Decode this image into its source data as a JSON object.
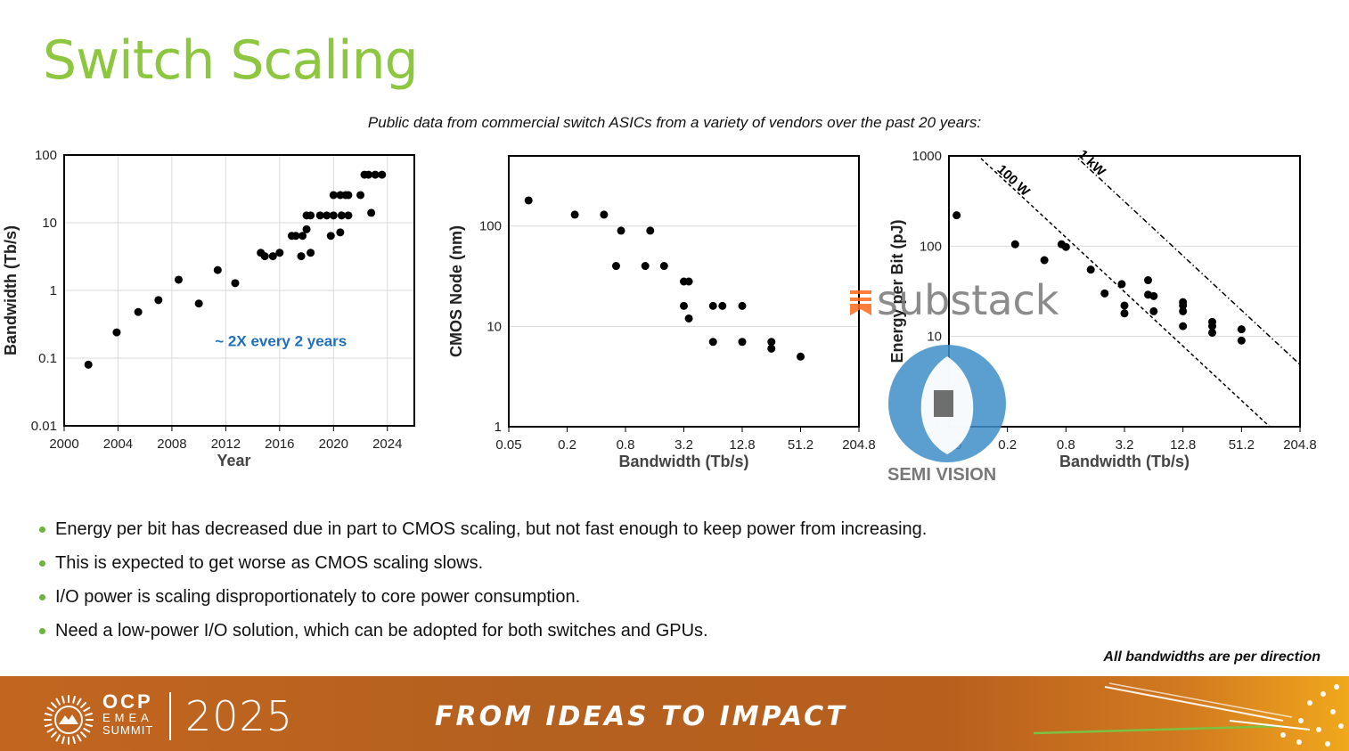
{
  "slide": {
    "title": "Switch Scaling",
    "subtitle": "Public data from commercial switch ASICs from a variety of vendors over the past 20 years:",
    "bullets": [
      "Energy per bit has decreased due in part to CMOS scaling, but not fast enough to keep power from increasing.",
      "This is expected to get worse as CMOS scaling slows.",
      "I/O power is scaling disproportionately to core power consumption.",
      "Need a low-power I/O solution, which can be adopted for both switches and GPUs."
    ],
    "footnote": "All bandwidths are per direction"
  },
  "footer": {
    "org": "OCP",
    "region": "EMEA",
    "event": "SUMMIT",
    "year": "2025",
    "tagline": "FROM IDEAS TO IMPACT"
  },
  "watermark": {
    "brand": "substack",
    "name": "SEMI VISION"
  },
  "colors": {
    "title_green": "#8dc63f",
    "annotation_blue": "#1f6fbf",
    "marker": "#000000"
  },
  "chart_data": [
    {
      "type": "scatter",
      "title": "",
      "xlabel": "Year",
      "ylabel": "Bandwidth (Tb/s)",
      "xscale": "linear",
      "yscale": "log",
      "xlim": [
        2000,
        2026
      ],
      "ylim": [
        0.01,
        100
      ],
      "xticks": [
        2000,
        2004,
        2008,
        2012,
        2016,
        2020,
        2024
      ],
      "xtick_labels": [
        "2000",
        "2004",
        "2008",
        "2012",
        "2016",
        "2020",
        "2024"
      ],
      "yticks": [
        0.01,
        0.1,
        1,
        10,
        100
      ],
      "ytick_labels": [
        "0.01",
        "0.1",
        "1",
        "10",
        "100"
      ],
      "annotation": {
        "text": "~ 2X every 2 years",
        "x": 2011.2,
        "y": 0.15
      },
      "points": [
        [
          2001.8,
          0.08
        ],
        [
          2003.9,
          0.24
        ],
        [
          2005.5,
          0.48
        ],
        [
          2007,
          0.72
        ],
        [
          2008.5,
          1.44
        ],
        [
          2010,
          0.64
        ],
        [
          2011.4,
          2.0
        ],
        [
          2012.7,
          1.28
        ],
        [
          2014.6,
          3.6
        ],
        [
          2014.9,
          3.2
        ],
        [
          2015.5,
          3.2
        ],
        [
          2016,
          3.6
        ],
        [
          2016.9,
          6.4
        ],
        [
          2017.2,
          6.4
        ],
        [
          2017.6,
          3.2
        ],
        [
          2017.7,
          6.4
        ],
        [
          2018,
          8.0
        ],
        [
          2018,
          12.8
        ],
        [
          2018.3,
          12.8
        ],
        [
          2018.3,
          3.6
        ],
        [
          2019,
          12.8
        ],
        [
          2019.5,
          12.8
        ],
        [
          2019.8,
          6.4
        ],
        [
          2020,
          12.8
        ],
        [
          2020,
          25.6
        ],
        [
          2020.5,
          7.2
        ],
        [
          2020.6,
          12.8
        ],
        [
          2020.5,
          25.6
        ],
        [
          2020.9,
          25.6
        ],
        [
          2021.1,
          12.8
        ],
        [
          2021.1,
          25.6
        ],
        [
          2022,
          25.6
        ],
        [
          2022.3,
          51.2
        ],
        [
          2022.6,
          51.2
        ],
        [
          2022.8,
          14
        ],
        [
          2023.1,
          51.2
        ],
        [
          2023.6,
          51.2
        ]
      ]
    },
    {
      "type": "scatter",
      "title": "",
      "xlabel": "Bandwidth (Tb/s)",
      "ylabel": "CMOS Node (nm)",
      "xscale": "log2",
      "yscale": "log",
      "xlim": [
        0.05,
        204.8
      ],
      "ylim": [
        1,
        500
      ],
      "xticks": [
        0.05,
        0.2,
        0.8,
        3.2,
        12.8,
        51.2,
        204.8
      ],
      "xtick_labels": [
        "0.05",
        "0.2",
        "0.8",
        "3.2",
        "12.8",
        "51.2",
        "204.8"
      ],
      "yticks": [
        1,
        10,
        100
      ],
      "ytick_labels": [
        "1",
        "10",
        "100"
      ],
      "points": [
        [
          0.08,
          180
        ],
        [
          0.24,
          130
        ],
        [
          0.48,
          130
        ],
        [
          0.64,
          40
        ],
        [
          0.72,
          90
        ],
        [
          1.28,
          40
        ],
        [
          1.44,
          90
        ],
        [
          2.0,
          40
        ],
        [
          3.2,
          28
        ],
        [
          3.6,
          28
        ],
        [
          3.2,
          16
        ],
        [
          3.6,
          12
        ],
        [
          6.4,
          16
        ],
        [
          6.4,
          7
        ],
        [
          8.0,
          16
        ],
        [
          12.8,
          16
        ],
        [
          12.8,
          7
        ],
        [
          25.6,
          7
        ],
        [
          25.6,
          6
        ],
        [
          51.2,
          5
        ]
      ]
    },
    {
      "type": "scatter",
      "title": "",
      "xlabel": "Bandwidth (Tb/s)",
      "ylabel": "Energy per Bit (pJ)",
      "xscale": "log2",
      "yscale": "log",
      "xlim": [
        0.05,
        204.8
      ],
      "ylim": [
        1,
        1000
      ],
      "xticks": [
        0.05,
        0.2,
        0.8,
        3.2,
        12.8,
        51.2,
        204.8
      ],
      "xtick_labels": [
        "0.05",
        "0.2",
        "0.8",
        "3.2",
        "12.8",
        "51.2",
        "204.8"
      ],
      "yticks": [
        1,
        10,
        100,
        1000
      ],
      "ytick_labels": [
        "1",
        "10",
        "100",
        "1000"
      ],
      "reference_lines": [
        {
          "label": "100 W",
          "watts": 100
        },
        {
          "label": "1 kW",
          "watts": 1000
        }
      ],
      "points": [
        [
          0.06,
          220
        ],
        [
          0.24,
          105
        ],
        [
          0.48,
          70
        ],
        [
          0.72,
          105
        ],
        [
          0.8,
          98
        ],
        [
          1.44,
          55
        ],
        [
          2.0,
          30
        ],
        [
          3.0,
          38
        ],
        [
          3.2,
          22
        ],
        [
          3.2,
          18
        ],
        [
          5.6,
          42
        ],
        [
          5.6,
          29
        ],
        [
          6.4,
          28
        ],
        [
          6.4,
          19
        ],
        [
          12.8,
          24
        ],
        [
          12.8,
          22
        ],
        [
          12.8,
          19
        ],
        [
          12.8,
          13
        ],
        [
          25.6,
          14.5
        ],
        [
          25.6,
          13
        ],
        [
          25.6,
          11
        ],
        [
          51.2,
          12
        ],
        [
          51.2,
          9
        ]
      ]
    }
  ]
}
